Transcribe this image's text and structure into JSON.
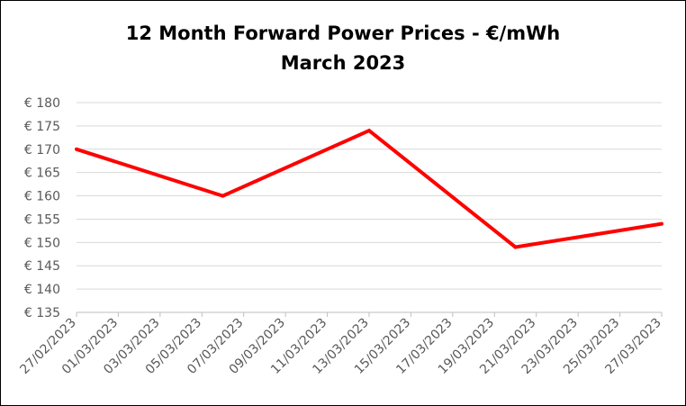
{
  "chart_data": {
    "type": "line",
    "title": "12 Month Forward Power Prices - €/mWh",
    "subtitle": "March 2023",
    "xlabel": "",
    "ylabel": "",
    "ylim": [
      135,
      180
    ],
    "ystep": 5,
    "ytick_prefix": "€ ",
    "xlim": [
      "2023-02-27",
      "2023-03-27"
    ],
    "x_tick_labels": [
      "27/02/2023",
      "01/03/2023",
      "03/03/2023",
      "05/03/2023",
      "07/03/2023",
      "09/03/2023",
      "11/03/2023",
      "13/03/2023",
      "15/03/2023",
      "17/03/2023",
      "19/03/2023",
      "21/03/2023",
      "23/03/2023",
      "25/03/2023",
      "27/03/2023"
    ],
    "grid": true,
    "legend": "none",
    "series": [
      {
        "color": "#ff0000",
        "x": [
          "2023-02-27",
          "2023-03-06",
          "2023-03-13",
          "2023-03-20",
          "2023-03-27"
        ],
        "values": [
          170,
          160,
          174,
          149,
          154
        ]
      }
    ]
  }
}
